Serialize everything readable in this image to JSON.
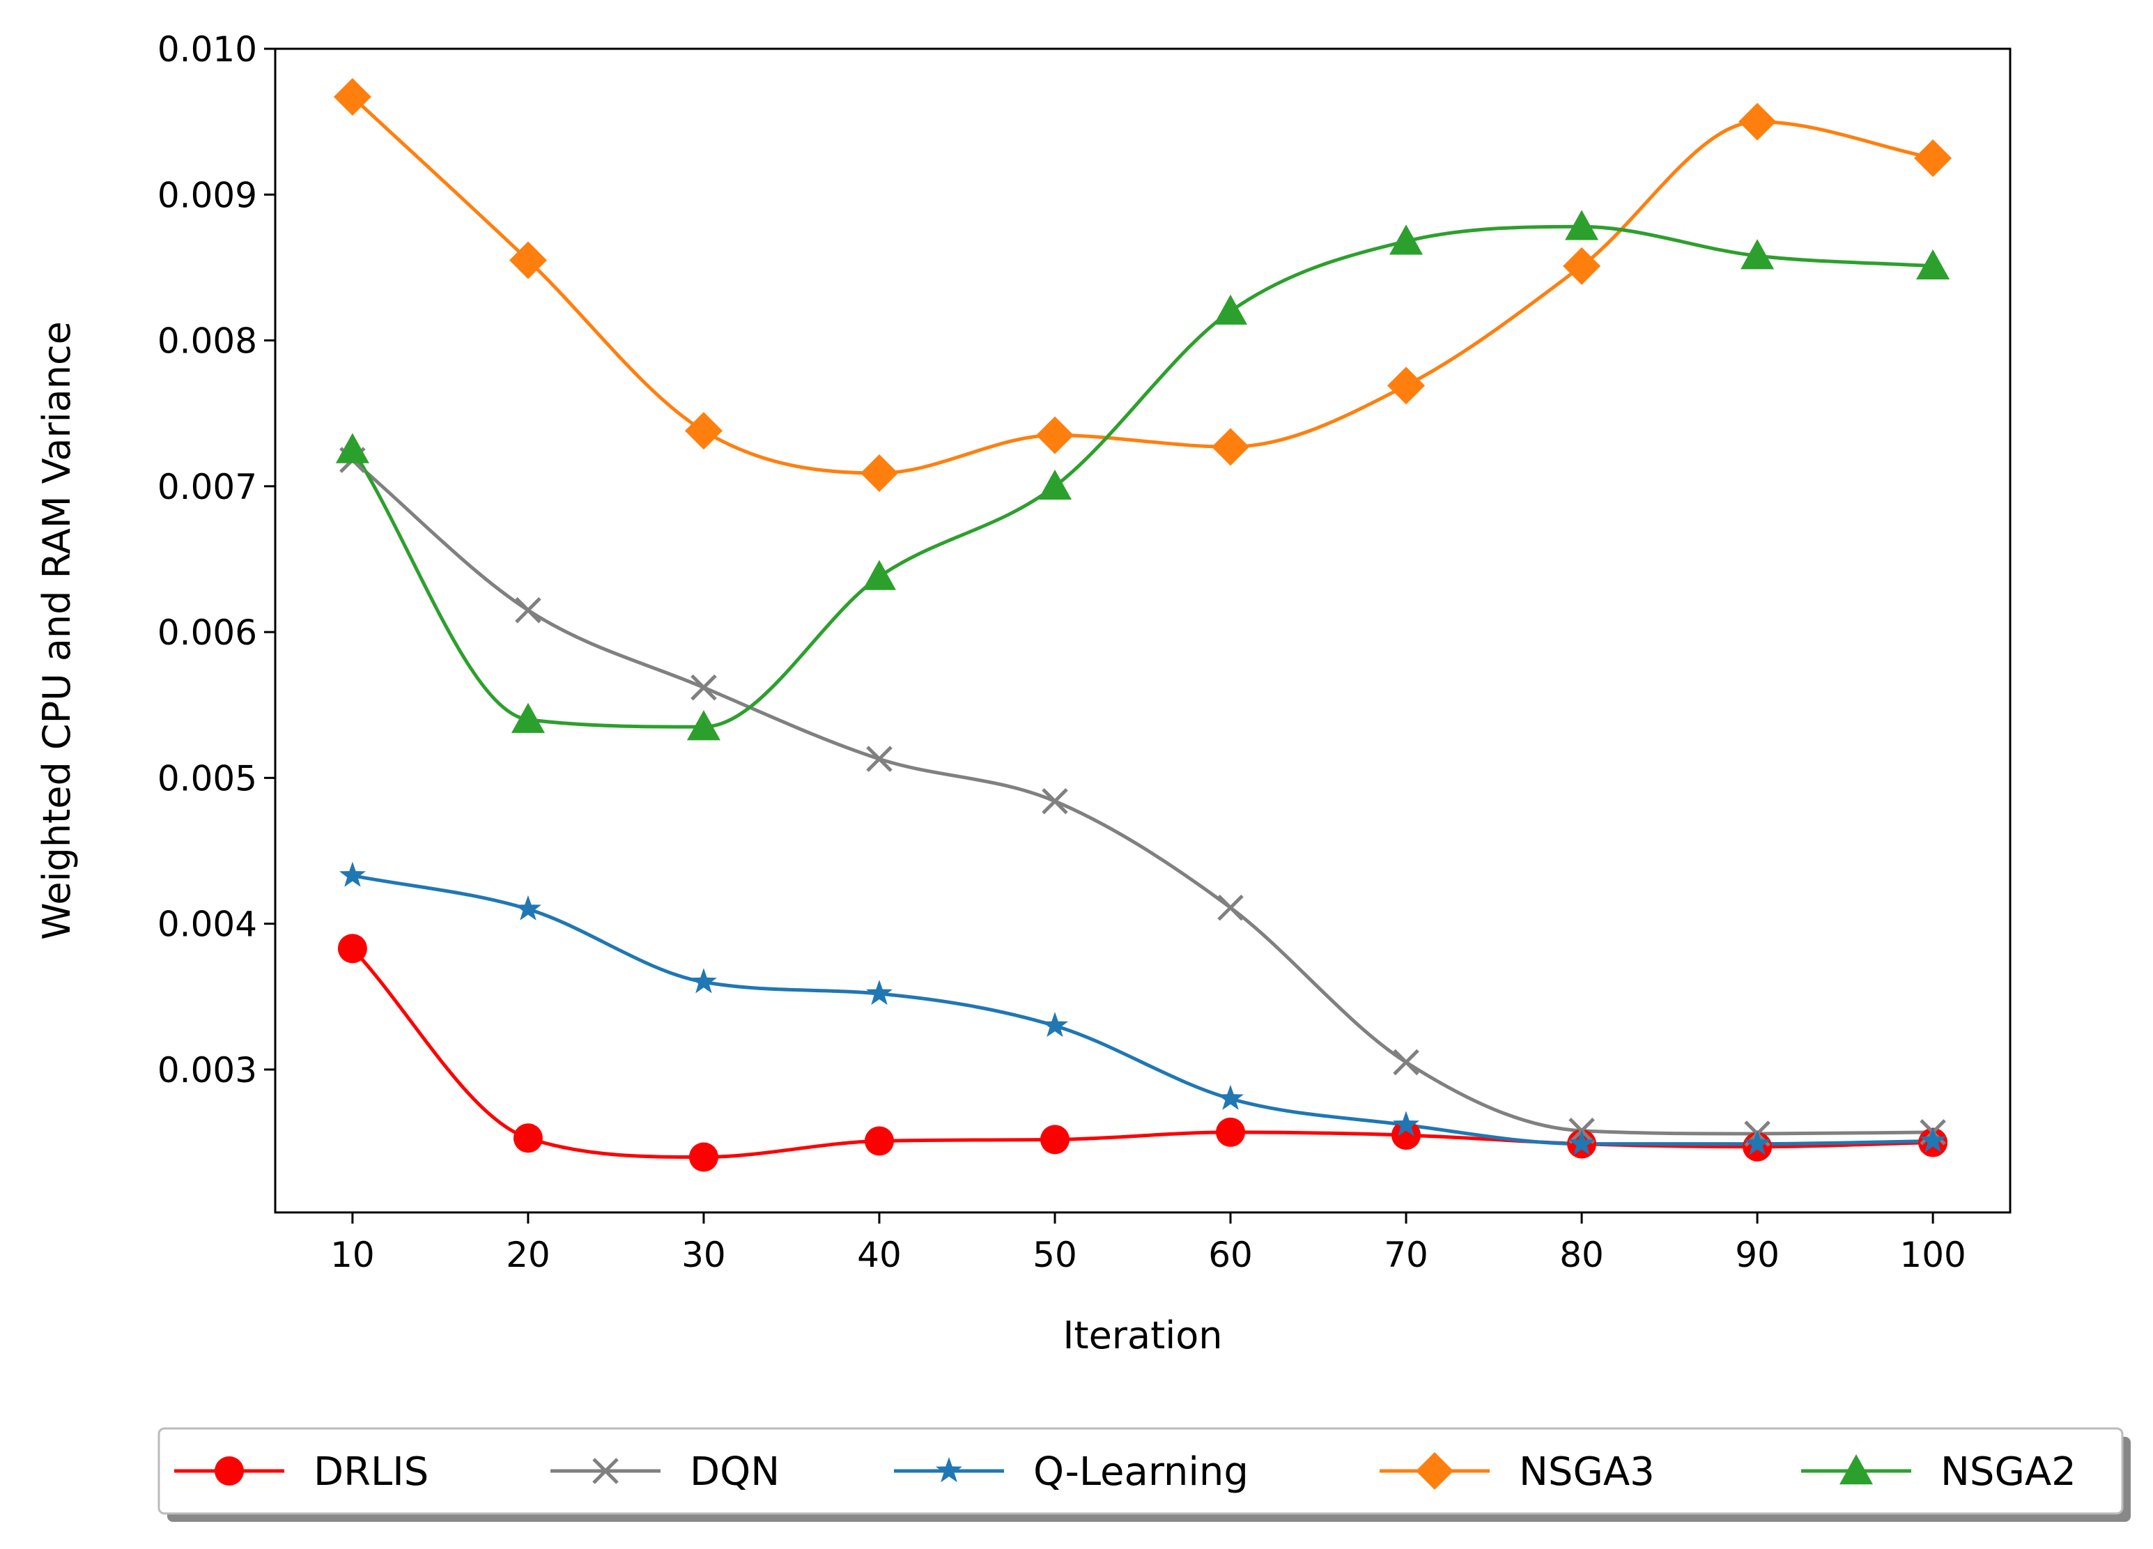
{
  "chart_data": {
    "type": "line",
    "xlabel": "Iteration",
    "ylabel": "Weighted CPU and RAM Variance",
    "x": [
      10,
      20,
      30,
      40,
      50,
      60,
      70,
      80,
      90,
      100
    ],
    "xlim": [
      5.6,
      104.4
    ],
    "ylim": [
      0.00202,
      0.01
    ],
    "xticks": [
      "10",
      "20",
      "30",
      "40",
      "50",
      "60",
      "70",
      "80",
      "90",
      "100"
    ],
    "yticks": [
      "0.003",
      "0.004",
      "0.005",
      "0.006",
      "0.007",
      "0.008",
      "0.009",
      "0.010"
    ],
    "ytick_values": [
      0.003,
      0.004,
      0.005,
      0.006,
      0.007,
      0.008,
      0.009,
      0.01
    ],
    "grid": false,
    "legend_position": "bottom-center",
    "series": [
      {
        "name": "DRLIS",
        "color": "#ff0000",
        "marker": "circle",
        "values": [
          0.00383,
          0.00253,
          0.0024,
          0.00251,
          0.00252,
          0.00257,
          0.00255,
          0.00249,
          0.00247,
          0.0025
        ]
      },
      {
        "name": "DQN",
        "color": "#808080",
        "marker": "x",
        "values": [
          0.00718,
          0.00615,
          0.00562,
          0.00513,
          0.00484,
          0.00411,
          0.00305,
          0.00258,
          0.00256,
          0.00257
        ]
      },
      {
        "name": "Q-Learning",
        "color": "#1f77b4",
        "marker": "star",
        "values": [
          0.00433,
          0.0041,
          0.0036,
          0.00352,
          0.0033,
          0.0028,
          0.00262,
          0.00249,
          0.00249,
          0.00251
        ]
      },
      {
        "name": "NSGA3",
        "color": "#ff7f0e",
        "marker": "diamond",
        "values": [
          0.00967,
          0.00855,
          0.00738,
          0.00709,
          0.00735,
          0.00727,
          0.00769,
          0.00851,
          0.0095,
          0.00925
        ]
      },
      {
        "name": "NSGA2",
        "color": "#2ca02c",
        "marker": "triangle",
        "values": [
          0.00725,
          0.0054,
          0.00535,
          0.00638,
          0.007,
          0.0082,
          0.00868,
          0.00878,
          0.00858,
          0.00851
        ]
      }
    ]
  }
}
